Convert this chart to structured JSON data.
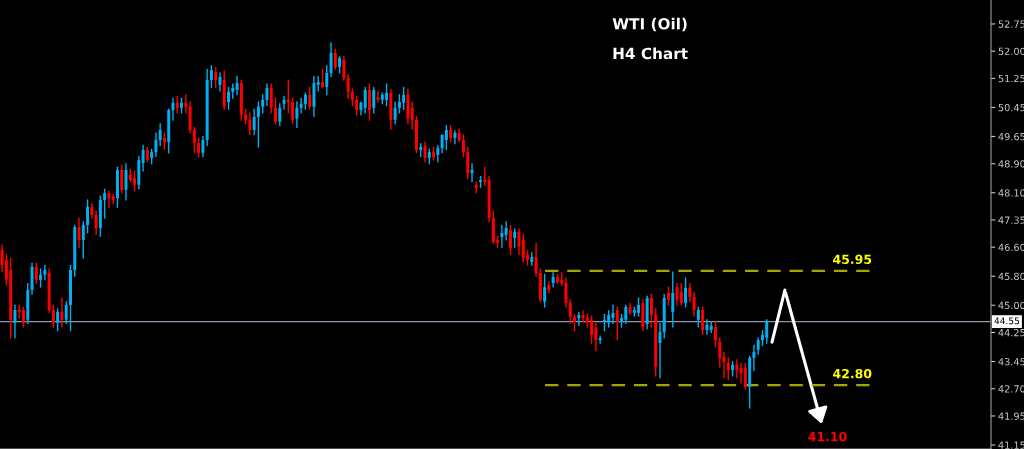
{
  "chart_data": {
    "type": "candlestick",
    "title": "WTI (Oil)",
    "subtitle": "H4 Chart",
    "categories": [
      null,
      null,
      null,
      null,
      null,
      null,
      null,
      null,
      null,
      null,
      null,
      null,
      null,
      null,
      null,
      null,
      null,
      null,
      null,
      null,
      null,
      null,
      null,
      null,
      null,
      null,
      null,
      null,
      null,
      null,
      null,
      null,
      null,
      null,
      null,
      null,
      null,
      null,
      null,
      null,
      null,
      null,
      null,
      null,
      null,
      null,
      null,
      null,
      null,
      null,
      null,
      null,
      null,
      null,
      null,
      null,
      null,
      null,
      null,
      null,
      null,
      null,
      null,
      null,
      null,
      null,
      null,
      null,
      null,
      null,
      null,
      null,
      null,
      null,
      null,
      null,
      null,
      null,
      null,
      null,
      null,
      null,
      null,
      null,
      null,
      null,
      null,
      null,
      null,
      null,
      null,
      null,
      null,
      null,
      null,
      null,
      null,
      null,
      null,
      null,
      null,
      null,
      null,
      null,
      null,
      null,
      null,
      null,
      null,
      null,
      null,
      null,
      null,
      null,
      null,
      null,
      null,
      null,
      null,
      null,
      null,
      null,
      null,
      null,
      null,
      null,
      null,
      null,
      null,
      null,
      null,
      null,
      null,
      null,
      null,
      null,
      null,
      null,
      null,
      null,
      null,
      null,
      null,
      null,
      null,
      null,
      null,
      null,
      null,
      null,
      null,
      null,
      null,
      null,
      null,
      null,
      null,
      null,
      null,
      null,
      null,
      null,
      null,
      null,
      null,
      null,
      null,
      null,
      null,
      null,
      null,
      null,
      null,
      null,
      null,
      null,
      null,
      null,
      null,
      null,
      null,
      null,
      null,
      null,
      null,
      null,
      null,
      null,
      null,
      null,
      null,
      null,
      null,
      null,
      null,
      null,
      null,
      null,
      null,
      null,
      null,
      null,
      null,
      null,
      null,
      null,
      null,
      null,
      null,
      null,
      null,
      null,
      null,
      null,
      null,
      null,
      null,
      null,
      null,
      null,
      null,
      null,
      null,
      null,
      null,
      null,
      null,
      null,
      null,
      null,
      null,
      null
    ],
    "ohlc": [
      [
        46.52,
        46.66,
        45.92,
        46.11
      ],
      [
        46.25,
        46.39,
        45.56,
        45.7
      ],
      [
        45.97,
        46.3,
        44.1,
        44.6
      ],
      [
        44.52,
        45.0,
        44.1,
        44.87
      ],
      [
        44.87,
        45.0,
        44.65,
        44.82
      ],
      [
        44.87,
        44.95,
        44.4,
        44.52
      ],
      [
        44.6,
        45.6,
        44.5,
        45.42
      ],
      [
        45.42,
        46.15,
        45.3,
        46.06
      ],
      [
        46.06,
        46.15,
        45.6,
        45.7
      ],
      [
        45.7,
        46.0,
        45.5,
        45.84
      ],
      [
        45.84,
        46.1,
        45.7,
        45.97
      ],
      [
        45.9,
        46.0,
        44.8,
        44.87
      ],
      [
        44.87,
        45.0,
        44.4,
        44.52
      ],
      [
        44.52,
        44.9,
        44.3,
        44.82
      ],
      [
        44.82,
        45.2,
        44.4,
        44.6
      ],
      [
        44.6,
        45.1,
        44.5,
        45.01
      ],
      [
        45.01,
        46.1,
        44.3,
        45.97
      ],
      [
        45.97,
        47.2,
        45.8,
        47.15
      ],
      [
        47.15,
        47.4,
        46.6,
        46.8
      ],
      [
        46.8,
        47.3,
        46.3,
        47.21
      ],
      [
        47.21,
        47.9,
        47.0,
        47.71
      ],
      [
        47.71,
        47.8,
        47.4,
        47.49
      ],
      [
        47.49,
        47.6,
        46.95,
        47.13
      ],
      [
        47.13,
        48.0,
        46.9,
        47.9
      ],
      [
        47.9,
        48.2,
        47.4,
        48.09
      ],
      [
        48.09,
        48.15,
        47.7,
        47.95
      ],
      [
        48.0,
        48.05,
        47.8,
        47.9
      ],
      [
        47.95,
        48.8,
        47.7,
        48.73
      ],
      [
        48.73,
        48.85,
        48.1,
        48.18
      ],
      [
        48.18,
        48.9,
        47.9,
        48.73
      ],
      [
        48.6,
        48.75,
        48.4,
        48.45
      ],
      [
        48.5,
        48.7,
        48.15,
        48.32
      ],
      [
        48.32,
        49.1,
        48.2,
        49.0
      ],
      [
        48.92,
        49.4,
        48.7,
        49.28
      ],
      [
        49.28,
        49.35,
        48.95,
        49.0
      ],
      [
        49.06,
        49.3,
        48.9,
        49.22
      ],
      [
        49.22,
        49.75,
        49.1,
        49.55
      ],
      [
        49.55,
        50.0,
        49.4,
        49.83
      ],
      [
        49.61,
        49.75,
        49.3,
        49.5
      ],
      [
        49.5,
        50.4,
        49.2,
        50.38
      ],
      [
        50.38,
        50.7,
        50.1,
        50.58
      ],
      [
        50.58,
        50.75,
        50.3,
        50.44
      ],
      [
        50.44,
        50.7,
        50.3,
        50.58
      ],
      [
        50.58,
        50.8,
        50.3,
        50.47
      ],
      [
        50.47,
        50.6,
        49.75,
        49.83
      ],
      [
        49.83,
        49.9,
        49.2,
        49.47
      ],
      [
        49.47,
        49.6,
        49.1,
        49.2
      ],
      [
        49.2,
        49.65,
        49.1,
        49.55
      ],
      [
        49.55,
        51.5,
        49.4,
        51.21
      ],
      [
        51.21,
        51.6,
        51.0,
        51.48
      ],
      [
        51.43,
        51.55,
        51.0,
        51.21
      ],
      [
        51.07,
        51.4,
        50.9,
        51.29
      ],
      [
        51.21,
        51.45,
        50.4,
        50.47
      ],
      [
        50.6,
        51.0,
        50.4,
        50.88
      ],
      [
        50.88,
        51.1,
        50.7,
        50.99
      ],
      [
        50.93,
        51.3,
        50.8,
        51.12
      ],
      [
        51.12,
        51.2,
        50.1,
        50.25
      ],
      [
        50.25,
        50.4,
        50.0,
        50.11
      ],
      [
        50.11,
        50.3,
        49.7,
        49.83
      ],
      [
        49.83,
        50.4,
        49.7,
        50.19
      ],
      [
        50.19,
        50.6,
        49.36,
        50.47
      ],
      [
        50.47,
        50.8,
        50.3,
        50.66
      ],
      [
        50.66,
        51.1,
        50.5,
        50.99
      ],
      [
        50.99,
        51.1,
        50.3,
        50.44
      ],
      [
        50.44,
        50.7,
        50.0,
        50.06
      ],
      [
        50.06,
        50.55,
        49.95,
        50.44
      ],
      [
        50.55,
        50.75,
        50.4,
        50.66
      ],
      [
        50.66,
        51.2,
        50.3,
        50.6
      ],
      [
        50.6,
        50.7,
        50.0,
        50.11
      ],
      [
        50.14,
        50.6,
        49.9,
        50.44
      ],
      [
        50.44,
        50.7,
        50.3,
        50.55
      ],
      [
        50.55,
        50.85,
        50.4,
        50.8
      ],
      [
        50.8,
        51.0,
        50.4,
        50.47
      ],
      [
        50.47,
        51.3,
        50.2,
        51.12
      ],
      [
        51.07,
        51.3,
        50.9,
        51.15
      ],
      [
        51.15,
        51.5,
        51.0,
        51.01
      ],
      [
        51.01,
        51.6,
        50.8,
        51.4
      ],
      [
        51.4,
        52.23,
        51.3,
        51.95
      ],
      [
        51.95,
        52.05,
        51.5,
        51.56
      ],
      [
        51.56,
        51.85,
        51.4,
        51.81
      ],
      [
        51.76,
        51.85,
        51.2,
        51.26
      ],
      [
        51.26,
        51.35,
        50.7,
        50.88
      ],
      [
        50.88,
        50.95,
        50.5,
        50.66
      ],
      [
        50.66,
        50.75,
        50.25,
        50.38
      ],
      [
        50.38,
        50.6,
        50.25,
        50.58
      ],
      [
        50.44,
        51.0,
        50.3,
        50.93
      ],
      [
        50.93,
        51.1,
        50.1,
        50.38
      ],
      [
        50.44,
        51.0,
        50.3,
        50.93
      ],
      [
        50.73,
        50.9,
        50.6,
        50.66
      ],
      [
        50.66,
        50.85,
        50.55,
        50.8
      ],
      [
        50.66,
        51.1,
        50.5,
        50.85
      ],
      [
        50.85,
        50.95,
        49.85,
        50.11
      ],
      [
        50.11,
        50.6,
        50.0,
        50.44
      ],
      [
        50.44,
        50.8,
        50.3,
        50.6
      ],
      [
        50.58,
        51.0,
        50.4,
        50.8
      ],
      [
        50.8,
        50.95,
        50.0,
        50.14
      ],
      [
        50.44,
        50.6,
        49.85,
        50.11
      ],
      [
        50.11,
        50.2,
        49.2,
        49.28
      ],
      [
        49.28,
        49.45,
        49.1,
        49.36
      ],
      [
        49.39,
        49.5,
        48.95,
        49.06
      ],
      [
        49.06,
        49.3,
        48.9,
        49.22
      ],
      [
        49.22,
        49.35,
        49.0,
        49.08
      ],
      [
        49.14,
        49.4,
        48.95,
        49.33
      ],
      [
        49.33,
        49.7,
        49.2,
        49.69
      ],
      [
        49.55,
        49.95,
        49.3,
        49.83
      ],
      [
        49.83,
        49.95,
        49.5,
        49.61
      ],
      [
        49.61,
        49.8,
        49.45,
        49.75
      ],
      [
        49.75,
        49.85,
        49.5,
        49.55
      ],
      [
        49.55,
        49.7,
        49.1,
        49.22
      ],
      [
        49.22,
        49.35,
        48.5,
        48.64
      ],
      [
        48.64,
        48.9,
        48.4,
        48.73
      ],
      [
        48.31,
        48.4,
        48.1,
        48.23
      ],
      [
        48.4,
        48.55,
        48.25,
        48.45
      ],
      [
        48.45,
        48.8,
        48.3,
        48.4
      ],
      [
        48.45,
        48.55,
        47.3,
        47.4
      ],
      [
        47.4,
        47.6,
        46.7,
        46.74
      ],
      [
        46.8,
        46.9,
        46.6,
        46.72
      ],
      [
        46.88,
        47.2,
        46.6,
        46.99
      ],
      [
        46.94,
        47.3,
        46.8,
        47.13
      ],
      [
        47.07,
        47.2,
        46.4,
        46.58
      ],
      [
        46.85,
        47.1,
        46.6,
        47.02
      ],
      [
        47.02,
        47.1,
        46.4,
        46.61
      ],
      [
        46.8,
        46.95,
        46.2,
        46.3
      ],
      [
        46.39,
        46.5,
        46.1,
        46.25
      ],
      [
        46.19,
        46.45,
        46.1,
        46.33
      ],
      [
        46.33,
        46.7,
        45.8,
        45.89
      ],
      [
        45.89,
        46.0,
        45.1,
        45.15
      ],
      [
        45.1,
        45.85,
        44.95,
        45.5
      ],
      [
        45.56,
        45.65,
        45.35,
        45.42
      ],
      [
        45.61,
        45.9,
        45.5,
        45.78
      ],
      [
        45.78,
        45.85,
        45.6,
        45.64
      ],
      [
        45.7,
        45.9,
        45.55,
        45.61
      ],
      [
        45.61,
        45.75,
        44.95,
        45.06
      ],
      [
        45.06,
        45.15,
        44.5,
        44.68
      ],
      [
        44.68,
        44.75,
        44.3,
        44.54
      ],
      [
        44.65,
        44.8,
        44.45,
        44.73
      ],
      [
        44.73,
        44.85,
        44.55,
        44.65
      ],
      [
        44.65,
        44.75,
        44.4,
        44.54
      ],
      [
        44.6,
        44.7,
        43.95,
        44.18
      ],
      [
        44.37,
        44.5,
        43.75,
        44.04
      ],
      [
        44.04,
        44.15,
        43.95,
        44.1
      ],
      [
        44.54,
        44.75,
        44.3,
        44.6
      ],
      [
        44.52,
        44.85,
        44.4,
        44.73
      ],
      [
        44.65,
        45.0,
        44.5,
        44.79
      ],
      [
        44.87,
        44.95,
        44.05,
        44.54
      ],
      [
        44.54,
        44.75,
        44.4,
        44.65
      ],
      [
        44.6,
        45.0,
        44.5,
        44.95
      ],
      [
        44.95,
        45.05,
        44.75,
        44.79
      ],
      [
        44.79,
        44.95,
        44.7,
        44.87
      ],
      [
        44.79,
        45.2,
        44.7,
        45.01
      ],
      [
        45.06,
        45.15,
        44.3,
        44.4
      ],
      [
        44.48,
        45.25,
        44.35,
        45.2
      ],
      [
        45.2,
        45.3,
        44.4,
        44.73
      ],
      [
        44.73,
        44.9,
        43.05,
        43.3
      ],
      [
        43.96,
        44.5,
        43.0,
        44.26
      ],
      [
        44.26,
        45.3,
        44.1,
        45.2
      ],
      [
        45.34,
        45.5,
        45.0,
        45.15
      ],
      [
        44.82,
        45.92,
        44.4,
        45.34
      ],
      [
        45.5,
        45.6,
        45.0,
        45.15
      ],
      [
        45.37,
        45.6,
        45.0,
        45.06
      ],
      [
        45.06,
        45.75,
        44.95,
        45.48
      ],
      [
        45.48,
        45.6,
        45.1,
        45.23
      ],
      [
        45.23,
        45.35,
        44.7,
        44.87
      ],
      [
        44.6,
        44.95,
        44.4,
        44.87
      ],
      [
        44.87,
        44.95,
        44.2,
        44.32
      ],
      [
        44.32,
        44.6,
        44.2,
        44.46
      ],
      [
        44.32,
        44.55,
        44.25,
        44.43
      ],
      [
        44.4,
        44.55,
        43.85,
        44.04
      ],
      [
        43.99,
        44.1,
        43.3,
        43.55
      ],
      [
        43.58,
        43.7,
        43.0,
        43.44
      ],
      [
        43.41,
        43.55,
        42.95,
        43.22
      ],
      [
        43.22,
        43.45,
        43.05,
        43.36
      ],
      [
        43.36,
        43.5,
        43.0,
        43.22
      ],
      [
        43.27,
        43.4,
        42.85,
        43.14
      ],
      [
        43.27,
        43.4,
        42.7,
        42.75
      ],
      [
        42.75,
        43.6,
        42.17,
        43.55
      ],
      [
        43.55,
        43.9,
        43.2,
        43.71
      ],
      [
        43.77,
        44.1,
        43.65,
        44.04
      ],
      [
        44.04,
        44.3,
        43.9,
        44.18
      ],
      [
        44.1,
        44.6,
        43.95,
        44.55
      ],
      null,
      null,
      null,
      null,
      null,
      null,
      null,
      null,
      null,
      null,
      null,
      null,
      null,
      null,
      null,
      null,
      null,
      null,
      null,
      null,
      null,
      null,
      null,
      null,
      null,
      null,
      null,
      null,
      null,
      null,
      null,
      null,
      null,
      null,
      null,
      null,
      null,
      null,
      null,
      null,
      null,
      null,
      null,
      null,
      null,
      null,
      null,
      null,
      null,
      null,
      null,
      null
    ],
    "colors": [
      "#ff0000",
      "#ff0000",
      "#ff0000",
      "#00b0f0",
      "#ff0000",
      "#ff0000",
      "#00b0f0",
      "#00b0f0",
      "#ff0000",
      "#00b0f0",
      "#00b0f0",
      "#ff0000",
      "#ff0000",
      "#00b0f0",
      "#ff0000",
      "#00b0f0",
      "#00b0f0",
      "#00b0f0",
      "#ff0000",
      "#00b0f0",
      "#00b0f0",
      "#ff0000",
      "#ff0000",
      "#00b0f0",
      "#00b0f0",
      "#ff0000",
      "#ff0000",
      "#00b0f0",
      "#ff0000",
      "#00b0f0",
      "#ff0000",
      "#ff0000",
      "#00b0f0",
      "#00b0f0",
      "#ff0000",
      "#00b0f0",
      "#00b0f0",
      "#00b0f0",
      "#ff0000",
      "#00b0f0",
      "#00b0f0",
      "#ff0000",
      "#00b0f0",
      "#ff0000",
      "#ff0000",
      "#ff0000",
      "#ff0000",
      "#00b0f0",
      "#00b0f0",
      "#00b0f0",
      "#ff0000",
      "#00b0f0",
      "#ff0000",
      "#00b0f0",
      "#00b0f0",
      "#00b0f0",
      "#ff0000",
      "#ff0000",
      "#ff0000",
      "#00b0f0",
      "#00b0f0",
      "#00b0f0",
      "#00b0f0",
      "#ff0000",
      "#ff0000",
      "#00b0f0",
      "#00b0f0",
      "#ff0000",
      "#ff0000",
      "#00b0f0",
      "#00b0f0",
      "#00b0f0",
      "#ff0000",
      "#00b0f0",
      "#00b0f0",
      "#ff0000",
      "#00b0f0",
      "#00b0f0",
      "#ff0000",
      "#00b0f0",
      "#ff0000",
      "#ff0000",
      "#ff0000",
      "#ff0000",
      "#00b0f0",
      "#00b0f0",
      "#ff0000",
      "#00b0f0",
      "#ff0000",
      "#00b0f0",
      "#00b0f0",
      "#ff0000",
      "#00b0f0",
      "#00b0f0",
      "#00b0f0",
      "#ff0000",
      "#ff0000",
      "#ff0000",
      "#00b0f0",
      "#ff0000",
      "#00b0f0",
      "#ff0000",
      "#00b0f0",
      "#00b0f0",
      "#00b0f0",
      "#ff0000",
      "#00b0f0",
      "#ff0000",
      "#ff0000",
      "#ff0000",
      "#00b0f0",
      "#ff0000",
      "#00b0f0",
      "#ff0000",
      "#ff0000",
      "#ff0000",
      "#ff0000",
      "#00b0f0",
      "#00b0f0",
      "#ff0000",
      "#00b0f0",
      "#ff0000",
      "#ff0000",
      "#ff0000",
      "#00b0f0",
      "#ff0000",
      "#ff0000",
      "#00b0f0",
      "#ff0000",
      "#00b0f0",
      "#ff0000",
      "#ff0000",
      "#ff0000",
      "#ff0000",
      "#ff0000",
      "#00b0f0",
      "#ff0000",
      "#ff0000",
      "#ff0000",
      "#ff0000",
      "#00b0f0",
      "#00b0f0",
      "#00b0f0",
      "#00b0f0",
      "#ff0000",
      "#00b0f0",
      "#00b0f0",
      "#ff0000",
      "#00b0f0",
      "#00b0f0",
      "#ff0000",
      "#00b0f0",
      "#ff0000",
      "#ff0000",
      "#00b0f0",
      "#00b0f0",
      "#ff0000",
      "#00b0f0",
      "#ff0000",
      "#ff0000",
      "#00b0f0",
      "#ff0000",
      "#ff0000",
      "#00b0f0",
      "#ff0000",
      "#00b0f0",
      "#00b0f0",
      "#ff0000",
      "#ff0000",
      "#ff0000",
      "#ff0000",
      "#00b0f0",
      "#ff0000",
      "#ff0000",
      "#ff0000",
      "#00b0f0",
      "#00b0f0",
      "#00b0f0",
      "#00b0f0",
      "#00b0f0",
      null,
      null,
      null,
      null,
      null,
      null,
      null,
      null,
      null,
      null,
      null,
      null,
      null,
      null,
      null,
      null,
      null,
      null,
      null,
      null,
      null,
      null,
      null,
      null,
      null,
      null,
      null,
      null,
      null,
      null,
      null,
      null,
      null,
      null,
      null,
      null,
      null,
      null,
      null,
      null,
      null,
      null,
      null,
      null,
      null,
      null,
      null,
      null,
      null,
      null,
      null,
      null
    ],
    "ylim": [
      41.04,
      53.41
    ],
    "yticks": [
      52.75,
      {
        "value": 52,
        "label": "52.00"
      },
      51.25,
      50.45,
      49.65,
      {
        "value": 48.9,
        "label": "48.90"
      },
      {
        "value": 48.1,
        "label": "48.10"
      },
      47.35,
      {
        "value": 46.6,
        "label": "46.60"
      },
      {
        "value": 45.8,
        "label": "45.80"
      },
      {
        "value": 45,
        "label": "45.00"
      },
      44.25,
      43.45,
      {
        "value": 42.7,
        "label": "42.70"
      },
      41.95,
      41.15
    ],
    "ref_lines": [
      {
        "axis": "y",
        "value": 45.95,
        "label": "45.95",
        "color": "#a6a600",
        "line_style": "dashed"
      },
      {
        "axis": "y",
        "value": 42.8,
        "label": "42.80",
        "color": "#a6a600",
        "line_style": "dashed"
      },
      {
        "axis": "y",
        "value": 44.55,
        "label": "44.55",
        "color": "#8a9aab",
        "line_style": "solid"
      }
    ],
    "annotations": [
      "41.10"
    ],
    "tick_labels": "y",
    "grid": false
  }
}
